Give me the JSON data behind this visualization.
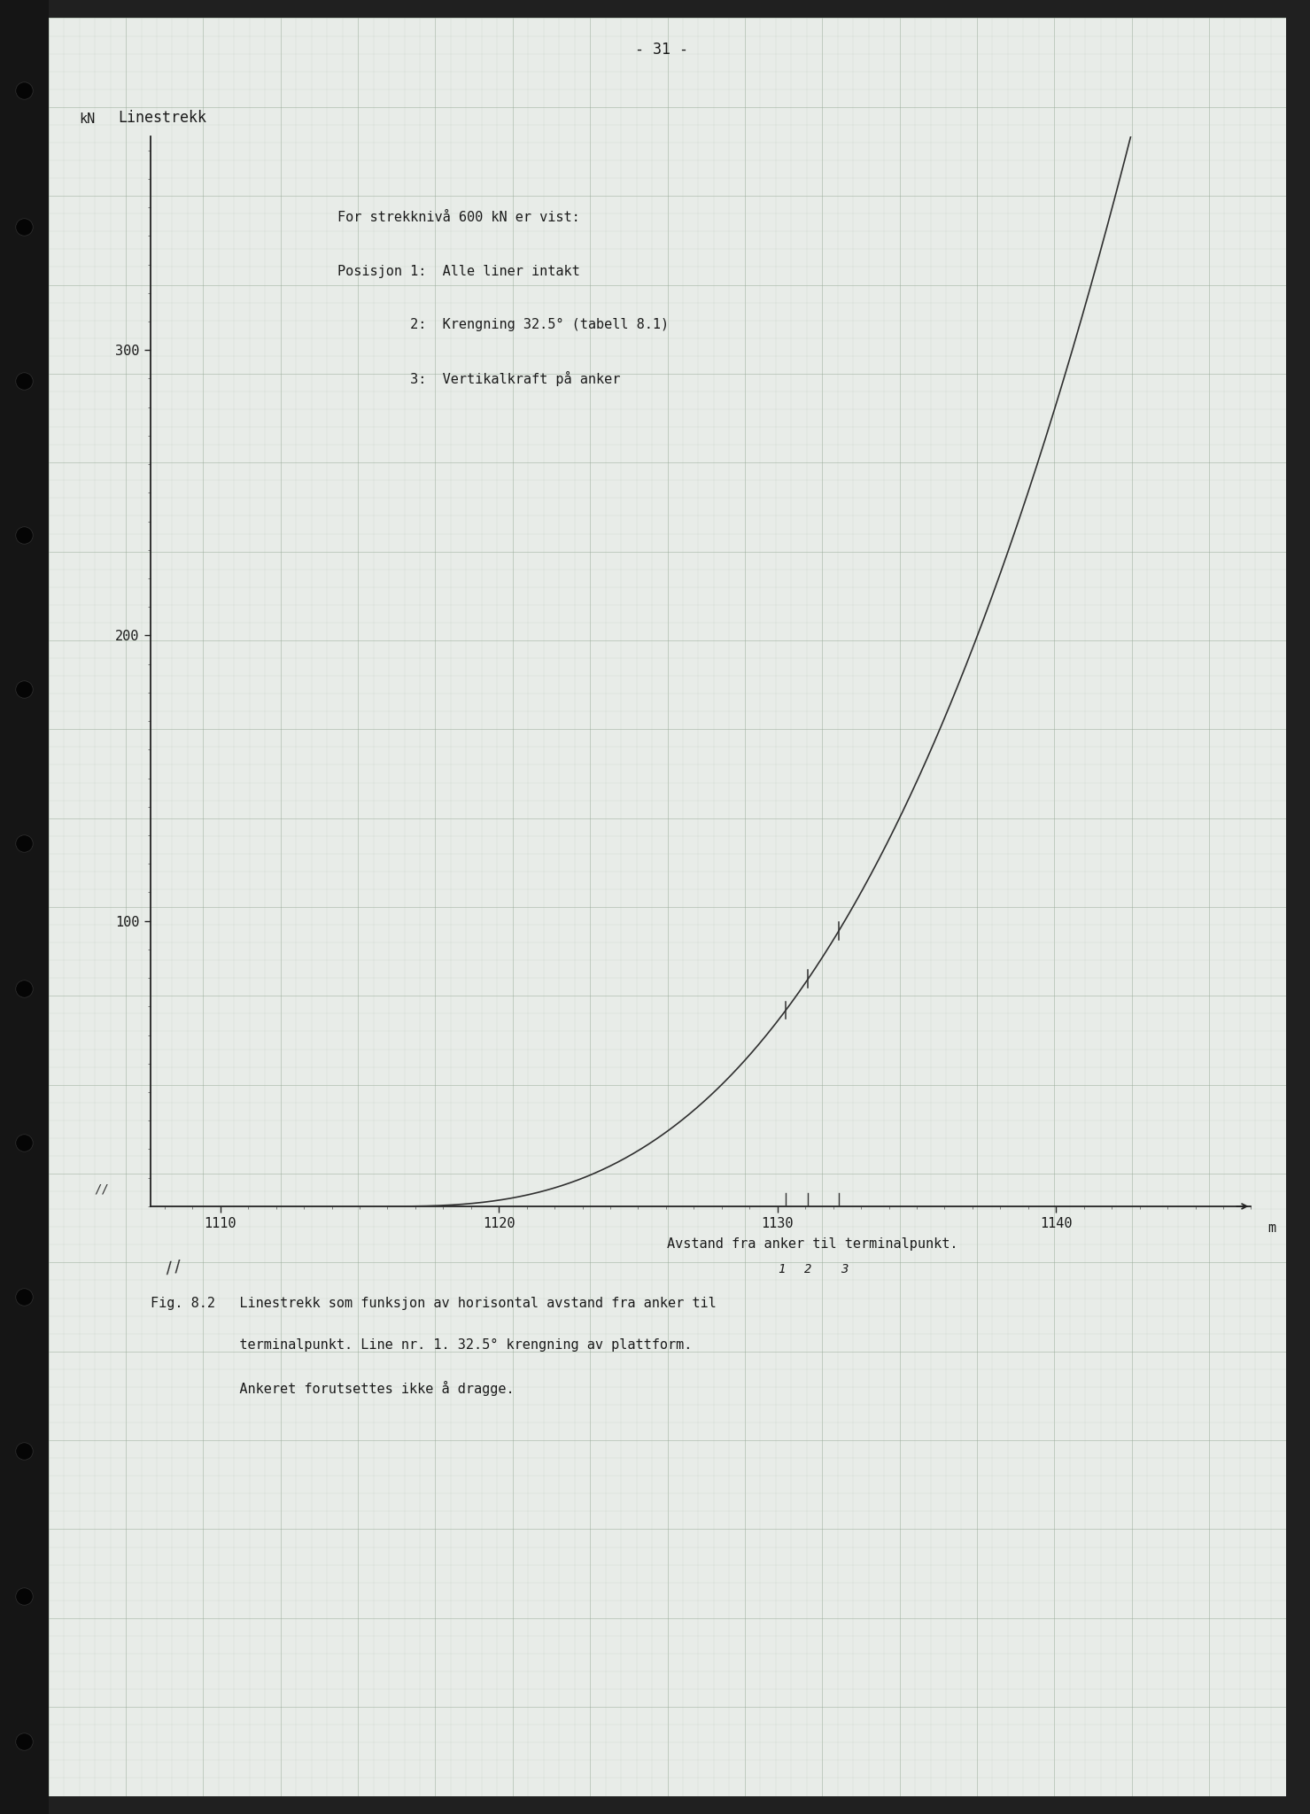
{
  "title_top": "- 31 -",
  "ylabel_kN": "kN",
  "ylabel_text": "Linestrekk",
  "xlabel_unit": "m",
  "xlabel_label": "Avstand fra anker til terminalpunkt.",
  "ann1": "For strekknivå 600 kN er vist:",
  "ann2": "Posisjon 1:  Alle liner intakt",
  "ann3": "         2:  Krengning 32.5° (tabell 8.1)",
  "ann4": "         3:  Vertikalkraft på anker",
  "fig_cap1": "Fig. 8.2   Linestrekk som funksjon av horisontal avstand fra anker til",
  "fig_cap2": "           terminalpunkt. Line nr. 1. 32.5° krengning av plattform.",
  "fig_cap3": "           Ankeret forutsettes ikke å dragge.",
  "yticks": [
    100,
    200,
    300
  ],
  "xticks": [
    1110,
    1120,
    1130,
    1140
  ],
  "xmin": 1107.5,
  "xmax": 1147.0,
  "ymin": 0,
  "ymax": 375,
  "curve_x0": 1116.0,
  "curve_n": 2.5,
  "marker1_x": 1130.3,
  "marker2_x": 1131.1,
  "marker3_x": 1132.2,
  "page_light": "#e8ece8",
  "grid_major": "#a0b0a0",
  "grid_minor": "#c0ccc0",
  "curve_color": "#303030",
  "text_color": "#1a1a1a",
  "spine_color": "#222222",
  "dark_left": "#1a1a1a",
  "paper_bg": "#dfe8df"
}
